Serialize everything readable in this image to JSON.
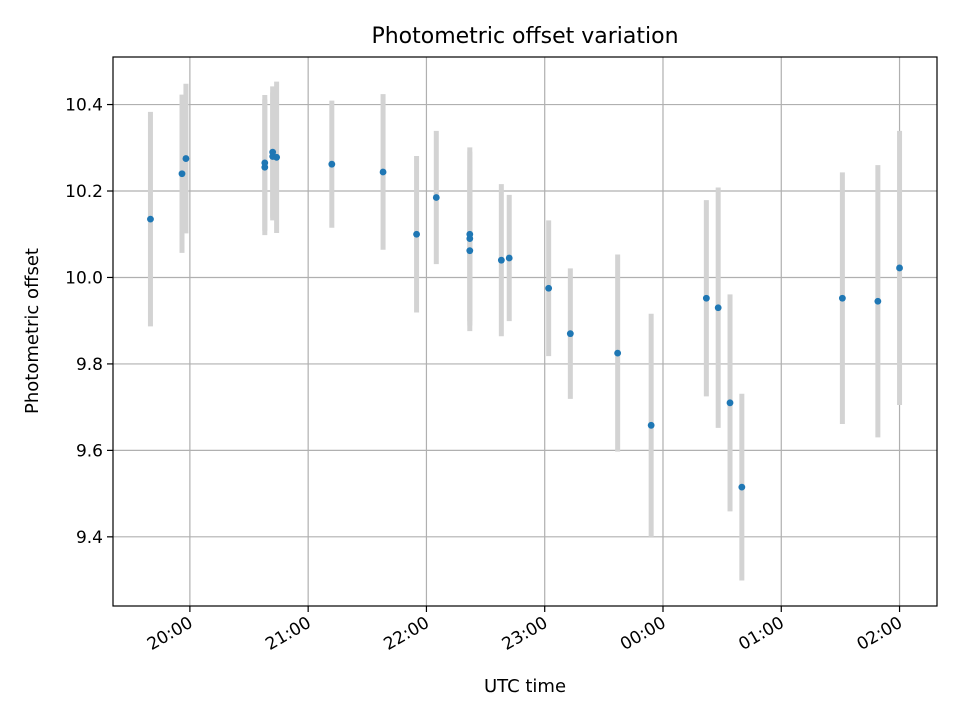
{
  "chart_data": {
    "type": "scatter",
    "title": "Photometric offset variation",
    "xlabel": "UTC time",
    "ylabel": "Photometric offset",
    "xlim": [
      "19:21",
      "02:19"
    ],
    "ylim": [
      9.24,
      10.51
    ],
    "yticks": [
      "9.4",
      "9.6",
      "9.8",
      "10.0",
      "10.2",
      "10.4"
    ],
    "xticks": [
      "20:00",
      "21:00",
      "22:00",
      "23:00",
      "00:00",
      "01:00",
      "02:00"
    ],
    "grid": true,
    "marker_color": "#1f77b4",
    "errorbar_color": "#d3d3d3",
    "series": [
      {
        "points": [
          {
            "x": "19:40",
            "y": 10.135,
            "err": 0.248
          },
          {
            "x": "19:56",
            "y": 10.24,
            "err": 0.183
          },
          {
            "x": "19:58",
            "y": 10.275,
            "err": 0.173
          },
          {
            "x": "20:38",
            "y": 10.255,
            "err": 0.157
          },
          {
            "x": "20:38",
            "y": 10.265,
            "err": 0.157
          },
          {
            "x": "20:42",
            "y": 10.29,
            "err": 0.152
          },
          {
            "x": "20:42",
            "y": 10.28,
            "err": 0.148
          },
          {
            "x": "20:44",
            "y": 10.278,
            "err": 0.175
          },
          {
            "x": "21:12",
            "y": 10.262,
            "err": 0.147
          },
          {
            "x": "21:38",
            "y": 10.244,
            "err": 0.18
          },
          {
            "x": "21:55",
            "y": 10.1,
            "err": 0.181
          },
          {
            "x": "22:05",
            "y": 10.185,
            "err": 0.154
          },
          {
            "x": "22:22",
            "y": 10.062,
            "err": 0.186
          },
          {
            "x": "22:22",
            "y": 10.09,
            "err": 0.201
          },
          {
            "x": "22:22",
            "y": 10.1,
            "err": 0.201
          },
          {
            "x": "22:38",
            "y": 10.04,
            "err": 0.176
          },
          {
            "x": "22:42",
            "y": 10.045,
            "err": 0.146
          },
          {
            "x": "23:02",
            "y": 9.975,
            "err": 0.157
          },
          {
            "x": "23:13",
            "y": 9.87,
            "err": 0.151
          },
          {
            "x": "23:37",
            "y": 9.825,
            "err": 0.228
          },
          {
            "x": "23:54",
            "y": 9.658,
            "err": 0.258
          },
          {
            "x": "00:22",
            "y": 9.952,
            "err": 0.227
          },
          {
            "x": "00:28",
            "y": 9.93,
            "err": 0.278
          },
          {
            "x": "00:34",
            "y": 9.71,
            "err": 0.251
          },
          {
            "x": "00:40",
            "y": 9.515,
            "err": 0.216
          },
          {
            "x": "01:31",
            "y": 9.952,
            "err": 0.291
          },
          {
            "x": "01:49",
            "y": 9.945,
            "err": 0.315
          },
          {
            "x": "02:00",
            "y": 10.022,
            "err": 0.317
          }
        ]
      }
    ]
  }
}
